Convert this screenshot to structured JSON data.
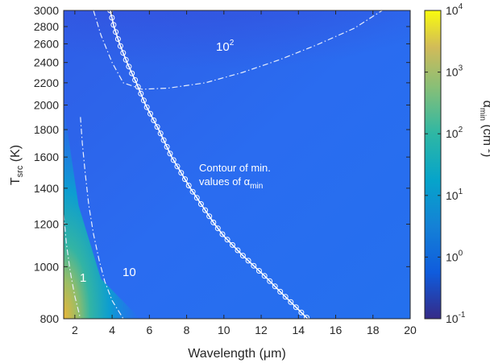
{
  "chart_data": {
    "type": "heatmap",
    "xlabel": "Wavelength (μm)",
    "ylabel": "T",
    "ylabel_sub": "src",
    "ylabel_unit": " (K)",
    "xlim": [
      1.4,
      20
    ],
    "ylim": [
      800,
      3000
    ],
    "yscale": "log",
    "x_ticks": [
      2,
      4,
      6,
      8,
      10,
      12,
      14,
      16,
      18,
      20
    ],
    "x_tick_labels": [
      "2",
      "4",
      "6",
      "8",
      "10",
      "12",
      "14",
      "16",
      "18",
      "20"
    ],
    "y_ticks": [
      800,
      1000,
      1200,
      1400,
      1600,
      1800,
      2000,
      2200,
      2400,
      2600,
      2800,
      3000
    ],
    "y_tick_labels": [
      "800",
      "1000",
      "1200",
      "1400",
      "1600",
      "1800",
      "2000",
      "2200",
      "2400",
      "2600",
      "2800",
      "3000"
    ],
    "colorbar": {
      "label": "α",
      "label_sub": "min",
      "label_unit": " (cm",
      "label_sup": "-1",
      "label_close": ")",
      "scale": "log",
      "range": [
        0.1,
        10000
      ],
      "tick_base": "10",
      "tick_exponents": [
        "-1",
        "0",
        "1",
        "2",
        "3",
        "4"
      ],
      "colormap": "parula"
    },
    "contours": [
      {
        "value": "10²",
        "label_base": "10",
        "label_sup": "2",
        "style": "dash-dot",
        "points": [
          [
            3.0,
            3000
          ],
          [
            3.4,
            2700
          ],
          [
            4.0,
            2400
          ],
          [
            4.6,
            2200
          ],
          [
            5.6,
            2140
          ],
          [
            7.0,
            2150
          ],
          [
            9.0,
            2200
          ],
          [
            11.0,
            2300
          ],
          [
            13.0,
            2430
          ],
          [
            15.0,
            2590
          ],
          [
            17.0,
            2780
          ],
          [
            18.5,
            3000
          ]
        ]
      },
      {
        "value": "10",
        "label": "10",
        "style": "dash-dot",
        "points": [
          [
            2.3,
            1900
          ],
          [
            2.4,
            1700
          ],
          [
            2.55,
            1500
          ],
          [
            2.75,
            1300
          ],
          [
            3.0,
            1150
          ],
          [
            3.3,
            1030
          ],
          [
            3.6,
            940
          ],
          [
            4.0,
            865
          ],
          [
            4.6,
            800
          ]
        ]
      },
      {
        "value": "1",
        "label": "1",
        "style": "dash-dot",
        "points": [
          [
            1.4,
            1250
          ],
          [
            1.55,
            1100
          ],
          [
            1.75,
            980
          ],
          [
            2.0,
            880
          ],
          [
            2.3,
            800
          ]
        ]
      }
    ],
    "min_alpha_curve": {
      "label_line1": "Contour of min.",
      "label_line2": "values of α",
      "label_line2_sub": "min",
      "marker": "open-circle",
      "points": [
        [
          3.9,
          3000
        ],
        [
          4.1,
          2800
        ],
        [
          4.4,
          2600
        ],
        [
          4.8,
          2400
        ],
        [
          5.3,
          2200
        ],
        [
          5.8,
          2000
        ],
        [
          6.5,
          1800
        ],
        [
          7.2,
          1600
        ],
        [
          8.2,
          1400
        ],
        [
          9.5,
          1200
        ],
        [
          10.0,
          1140
        ],
        [
          11.0,
          1050
        ],
        [
          12.2,
          960
        ],
        [
          13.0,
          900
        ],
        [
          14.5,
          800
        ]
      ]
    }
  }
}
